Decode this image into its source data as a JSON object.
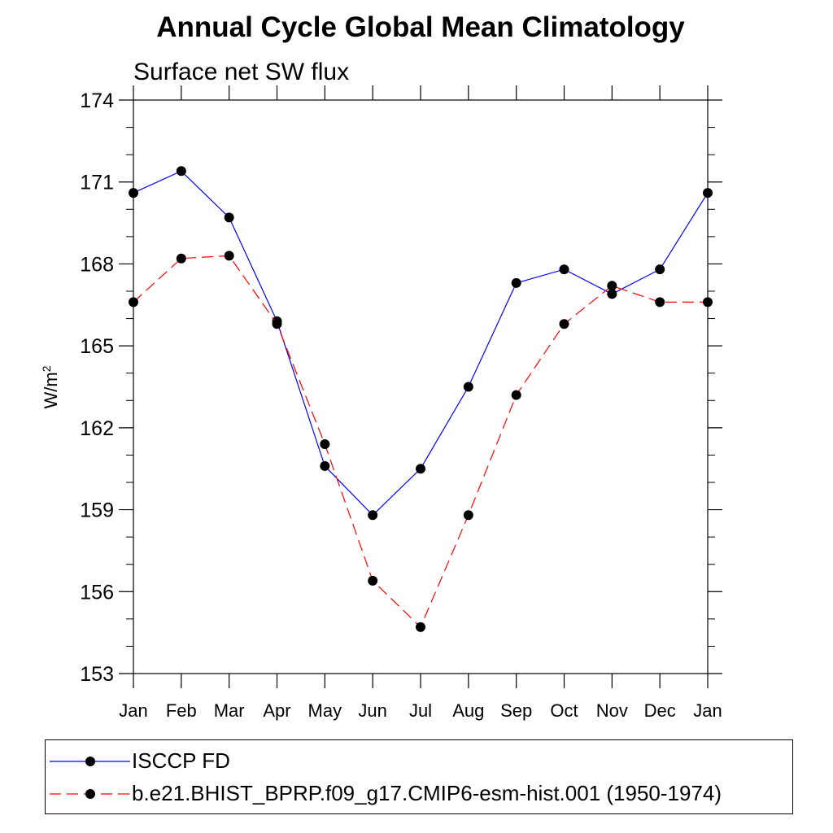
{
  "title": "Annual Cycle Global Mean Climatology",
  "subtitle": "Surface net SW flux",
  "chart_data": {
    "type": "line",
    "title": "Annual Cycle Global Mean Climatology",
    "subtitle": "Surface net SW flux",
    "xlabel": "",
    "ylabel": "W/m",
    "ylabel_superscript": "2",
    "ylim": [
      153,
      174
    ],
    "yticks": [
      153,
      156,
      159,
      162,
      165,
      168,
      171,
      174
    ],
    "categories": [
      "Jan",
      "Feb",
      "Mar",
      "Apr",
      "May",
      "Jun",
      "Jul",
      "Aug",
      "Sep",
      "Oct",
      "Nov",
      "Dec",
      "Jan"
    ],
    "grid": false,
    "legend_placement": "bottom",
    "series": [
      {
        "name": "ISCCP FD",
        "color": "#0000ff",
        "style": "solid",
        "values": [
          170.6,
          171.4,
          169.7,
          165.9,
          160.6,
          158.8,
          160.5,
          163.5,
          167.3,
          167.8,
          166.9,
          167.8,
          170.6
        ]
      },
      {
        "name": "b.e21.BHIST_BPRP.f09_g17.CMIP6-esm-hist.001 (1950-1974)",
        "color": "#ff0000",
        "style": "dashed",
        "values": [
          166.6,
          168.2,
          168.3,
          165.8,
          161.4,
          156.4,
          154.7,
          158.8,
          163.2,
          165.8,
          167.2,
          166.6,
          166.6
        ]
      }
    ]
  }
}
